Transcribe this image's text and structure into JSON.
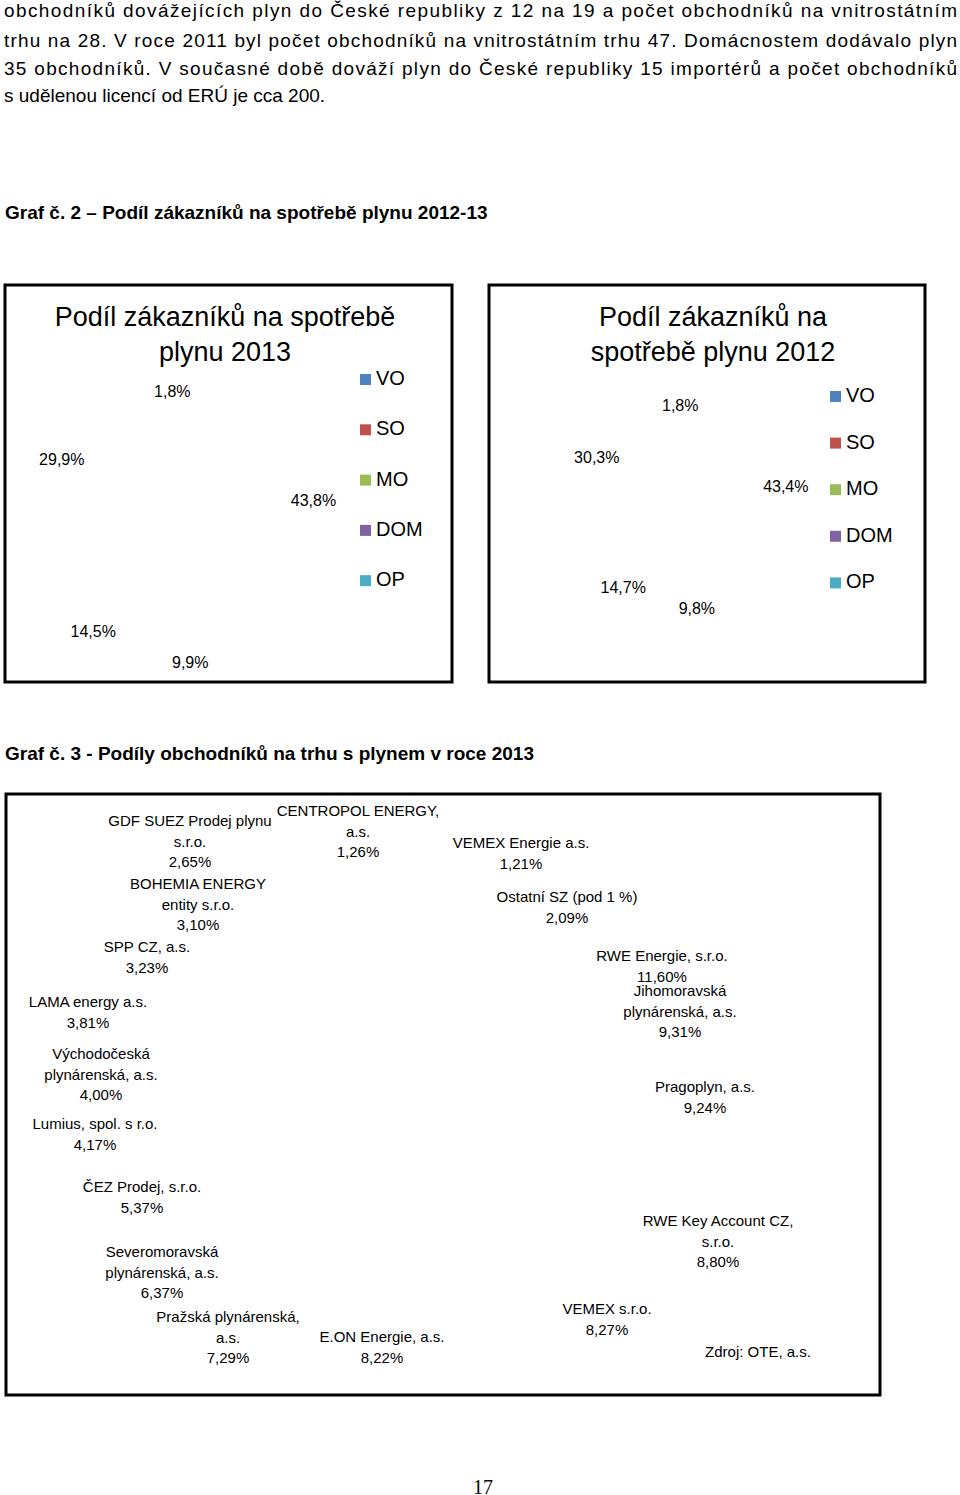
{
  "text_lines": [
    "obchodníků dovážejících plyn do České republiky z 12 na 19 a počet obchodníků na vnitrostátním",
    "trhu na 28. V roce 2011 byl počet obchodníků na vnitrostátním trhu 47. Domácnostem dodávalo plyn",
    "35 obchodníků. V současné době dováží plyn do České republiky 15 importérů a počet obchodníků",
    "s udělenou licencí od ERÚ je cca 200."
  ],
  "captions": [
    "Graf č. 2 – Podíl zákazníků na spotřebě plynu 2012-13",
    "Graf č. 3 - Podíly obchodníků na trhu s plynem v roce 2013"
  ],
  "page_number": 17,
  "chart_data": [
    {
      "type": "donut",
      "title": "Podíl zákazníků na spotřebě plynu 2013",
      "categories": [
        "VO",
        "SO",
        "MO",
        "DOM",
        "OP"
      ],
      "values": [
        43.8,
        9.9,
        14.5,
        29.9,
        1.8
      ],
      "value_labels": [
        "43,8%",
        "9,9%",
        "14,5%",
        "29,9%",
        "1,8%"
      ],
      "colors": [
        "#4f81bd",
        "#c0504d",
        "#9bbb59",
        "#8064a2",
        "#4bacc6"
      ],
      "data_labels": true,
      "legend": "right"
    },
    {
      "type": "donut",
      "title": "Podíl zákazníků na spotřebě plynu 2012",
      "categories": [
        "VO",
        "SO",
        "MO",
        "DOM",
        "OP"
      ],
      "values": [
        43.4,
        9.8,
        14.7,
        30.3,
        1.8
      ],
      "value_labels": [
        "43,4%",
        "9,8%",
        "14,7%",
        "30,3%",
        "1,8%"
      ],
      "colors": [
        "#4f81bd",
        "#c0504d",
        "#9bbb59",
        "#8064a2",
        "#4bacc6"
      ],
      "data_labels": true,
      "legend": "right"
    },
    {
      "type": "pie",
      "categories": [
        "RWE Energie, s.r.o.",
        "Jihomoravská plynárenská, a.s.",
        "Pragoplyn, a.s.",
        "RWE Key Account CZ, s.r.o.",
        "VEMEX s.r.o.",
        "E.ON Energie, a.s.",
        "Pražská plynárenská, a.s.",
        "Severomoravská plynárenská, a.s.",
        "ČEZ Prodej, s.r.o.",
        "Lumius, spol. s r.o.",
        "Východočeská plynárenská, a.s.",
        "LAMA energy a.s.",
        "SPP CZ, a.s.",
        "BOHEMIA ENERGY entity s.r.o.",
        "GDF SUEZ Prodej plynu s.r.o.",
        "CENTROPOL ENERGY, a.s.",
        "VEMEX Energie a.s.",
        "Ostatní SZ (pod 1 %)"
      ],
      "values": [
        11.6,
        9.31,
        9.24,
        8.8,
        8.27,
        8.22,
        7.29,
        6.37,
        5.37,
        4.17,
        4.0,
        3.81,
        3.23,
        3.1,
        2.65,
        1.26,
        1.21,
        2.09
      ],
      "value_labels": [
        "11,60%",
        "9,31%",
        "9,24%",
        "8,80%",
        "8,27%",
        "8,22%",
        "7,29%",
        "6,37%",
        "5,37%",
        "4,17%",
        "4,00%",
        "3,81%",
        "3,23%",
        "3,10%",
        "2,65%",
        "1,26%",
        "1,21%",
        "2,09%"
      ],
      "colors": [
        "#3e6ba3",
        "#953b39",
        "#77973d",
        "#604a7b",
        "#31859c",
        "#c0702b",
        "#4a7ebb",
        "#c0504d",
        "#9bbb59",
        "#8064a2",
        "#4bacc6",
        "#f79646",
        "#7f9fcf",
        "#d08a88",
        "#b4cc84",
        "#a896c2",
        "#86c3d6",
        "#f9b98a"
      ],
      "data_labels": true,
      "annotations": [
        "Zdroj: OTE, a.s."
      ]
    }
  ]
}
